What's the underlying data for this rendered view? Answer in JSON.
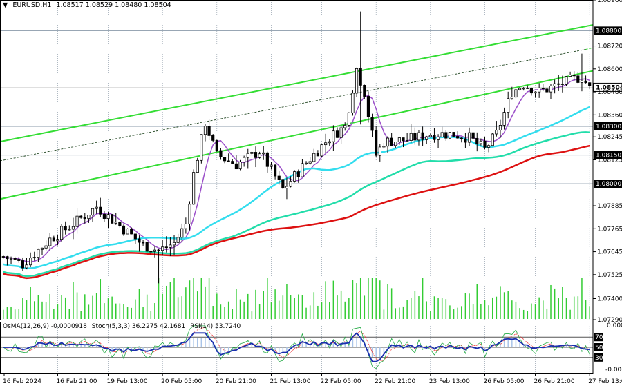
{
  "header": {
    "menu_arrow": "▼",
    "symbol": "EURUSD,H1",
    "ohlc": "1.08517 1.08529 1.08480 1.08504"
  },
  "indicators_header": {
    "osma": "OsMA(12,26,9) -0.0000918",
    "stoch": "Stoch(5,3,3) 36.2275 42.1681",
    "rsi": "RSI(14) 53.7240"
  },
  "colors": {
    "background": "#ffffff",
    "grid": "#7b8b9b",
    "candle": "#000000",
    "ma_fast": "#9b4fc9",
    "ma_50": "#33ddee",
    "ma_100": "#22ddaa",
    "ma_200": "#dd1111",
    "channel": "#33dd33",
    "volume": "#33cc33",
    "osma_hist": "#a9c4e8",
    "rsi_line": "#1a2fae",
    "stoch_main": "#22aa44",
    "stoch_signal": "#ee3333"
  },
  "chart_data": {
    "type": "candlestick",
    "symbol": "EURUSD",
    "timeframe": "H1",
    "ylim": [
      1.0729,
      1.0896
    ],
    "y_ticks": [
      "1.08960",
      "1.08720",
      "1.08600",
      "1.08480",
      "1.08360",
      "1.08245",
      "1.08125",
      "1.07885",
      "1.07765",
      "1.07645",
      "1.07525",
      "1.07400",
      "1.07290"
    ],
    "level_labels": [
      "1.08800",
      "1.08300",
      "1.08150",
      "1.08000"
    ],
    "level_values": [
      1.088,
      1.083,
      1.0815,
      1.08
    ],
    "current_price_label": "1.08504",
    "current_price": 1.08504,
    "x_ticks": [
      "16 Feb 2024",
      "16 Feb 21:00",
      "19 Feb 13:00",
      "20 Feb 05:00",
      "20 Feb 21:00",
      "21 Feb 13:00",
      "22 Feb 05:00",
      "22 Feb 21:00",
      "23 Feb 13:00",
      "26 Feb 05:00",
      "26 Feb 21:00",
      "27 Feb 13:00"
    ],
    "anchors": [
      [
        0,
        1.0762
      ],
      [
        5,
        1.0758
      ],
      [
        12,
        1.0771
      ],
      [
        18,
        1.0779
      ],
      [
        24,
        1.0788
      ],
      [
        30,
        1.0778
      ],
      [
        36,
        1.0768
      ],
      [
        40,
        1.0765
      ],
      [
        44,
        1.0769
      ],
      [
        47,
        1.0779
      ],
      [
        49,
        1.0805
      ],
      [
        52,
        1.0832
      ],
      [
        55,
        1.0815
      ],
      [
        60,
        1.081
      ],
      [
        66,
        1.0817
      ],
      [
        72,
        1.0797
      ],
      [
        78,
        1.0811
      ],
      [
        84,
        1.0824
      ],
      [
        88,
        1.083
      ],
      [
        91,
        1.086
      ],
      [
        93,
        1.0848
      ],
      [
        94,
        1.0836
      ],
      [
        96,
        1.0815
      ],
      [
        98,
        1.0822
      ],
      [
        104,
        1.0823
      ],
      [
        110,
        1.0826
      ],
      [
        116,
        1.0826
      ],
      [
        120,
        1.0824
      ],
      [
        124,
        1.0818
      ],
      [
        127,
        1.0826
      ],
      [
        131,
        1.0848
      ],
      [
        134,
        1.0852
      ],
      [
        138,
        1.0848
      ],
      [
        142,
        1.0851
      ],
      [
        146,
        1.0854
      ],
      [
        149,
        1.0856
      ],
      [
        151,
        1.085
      ]
    ],
    "candle_count": 152,
    "moving_averages": [
      "fast",
      "50",
      "100",
      "200"
    ],
    "channel_lines": {
      "upper_start": 1.0822,
      "upper_end": 1.0883,
      "middle_start": 1.0812,
      "middle_end": 1.0871,
      "lower_start": 1.0792,
      "lower_end": 1.0859
    },
    "indicator_pane": {
      "levels": [
        "70",
        "50",
        "30"
      ],
      "level_values": [
        70,
        50,
        30
      ],
      "scale_top": "0.0007928",
      "scale_bottom": "-0.0007660"
    }
  }
}
